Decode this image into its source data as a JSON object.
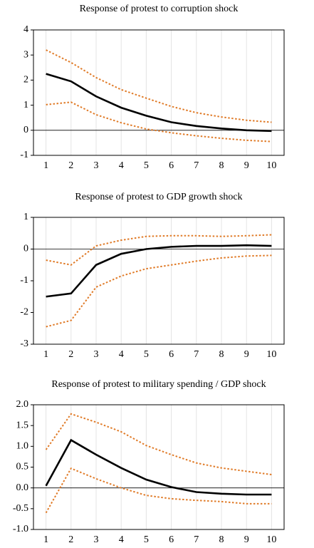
{
  "chart_data": [
    {
      "type": "line",
      "title": "Response of protest to corruption shock",
      "categories": [
        "1",
        "2",
        "3",
        "4",
        "5",
        "6",
        "7",
        "8",
        "9",
        "10"
      ],
      "ylim": [
        -1,
        4
      ],
      "yticks": [
        -1,
        0,
        1,
        2,
        3,
        4
      ],
      "grid": true,
      "series": [
        {
          "color": "#000000",
          "style": "solid",
          "values": [
            2.25,
            1.95,
            1.35,
            0.9,
            0.58,
            0.32,
            0.17,
            0.07,
            0.0,
            -0.03
          ]
        },
        {
          "color": "#e07b28",
          "style": "dotted",
          "values": [
            3.2,
            2.7,
            2.1,
            1.62,
            1.28,
            0.95,
            0.7,
            0.53,
            0.4,
            0.32
          ]
        },
        {
          "color": "#e07b28",
          "style": "dotted",
          "values": [
            1.02,
            1.12,
            0.62,
            0.3,
            0.05,
            -0.1,
            -0.22,
            -0.32,
            -0.4,
            -0.45
          ]
        }
      ]
    },
    {
      "type": "line",
      "title": "Response of protest to GDP growth shock",
      "categories": [
        "1",
        "2",
        "3",
        "4",
        "5",
        "6",
        "7",
        "8",
        "9",
        "10"
      ],
      "ylim": [
        -3,
        1
      ],
      "yticks": [
        -3,
        -2,
        -1,
        0,
        1
      ],
      "grid": true,
      "series": [
        {
          "color": "#000000",
          "style": "solid",
          "values": [
            -1.5,
            -1.4,
            -0.5,
            -0.15,
            0.0,
            0.07,
            0.1,
            0.1,
            0.12,
            0.1
          ]
        },
        {
          "color": "#e07b28",
          "style": "dotted",
          "values": [
            -0.35,
            -0.5,
            0.1,
            0.28,
            0.4,
            0.42,
            0.42,
            0.4,
            0.42,
            0.45
          ]
        },
        {
          "color": "#e07b28",
          "style": "dotted",
          "values": [
            -2.45,
            -2.25,
            -1.2,
            -0.85,
            -0.62,
            -0.5,
            -0.38,
            -0.28,
            -0.22,
            -0.2
          ]
        }
      ]
    },
    {
      "type": "line",
      "title": "Response of protest to military spending / GDP shock",
      "categories": [
        "1",
        "2",
        "3",
        "4",
        "5",
        "6",
        "7",
        "8",
        "9",
        "10"
      ],
      "ylim": [
        -1,
        2
      ],
      "yticks": [
        {
          "value": -1,
          "label": "-1.0"
        },
        {
          "value": -0.5,
          "label": "-0.5"
        },
        {
          "value": 0,
          "label": "0.0"
        },
        {
          "value": 0.5,
          "label": "0.5"
        },
        {
          "value": 1,
          "label": "1.0"
        },
        {
          "value": 1.5,
          "label": "1.5"
        },
        {
          "value": 2,
          "label": "2.0"
        }
      ],
      "grid": true,
      "series": [
        {
          "color": "#000000",
          "style": "solid",
          "values": [
            0.05,
            1.15,
            0.8,
            0.48,
            0.2,
            0.02,
            -0.1,
            -0.14,
            -0.16,
            -0.16
          ]
        },
        {
          "color": "#e07b28",
          "style": "dotted",
          "values": [
            0.92,
            1.78,
            1.58,
            1.35,
            1.02,
            0.8,
            0.6,
            0.48,
            0.4,
            0.32
          ]
        },
        {
          "color": "#e07b28",
          "style": "dotted",
          "values": [
            -0.6,
            0.47,
            0.22,
            0.0,
            -0.18,
            -0.26,
            -0.3,
            -0.33,
            -0.38,
            -0.38
          ]
        }
      ]
    }
  ]
}
